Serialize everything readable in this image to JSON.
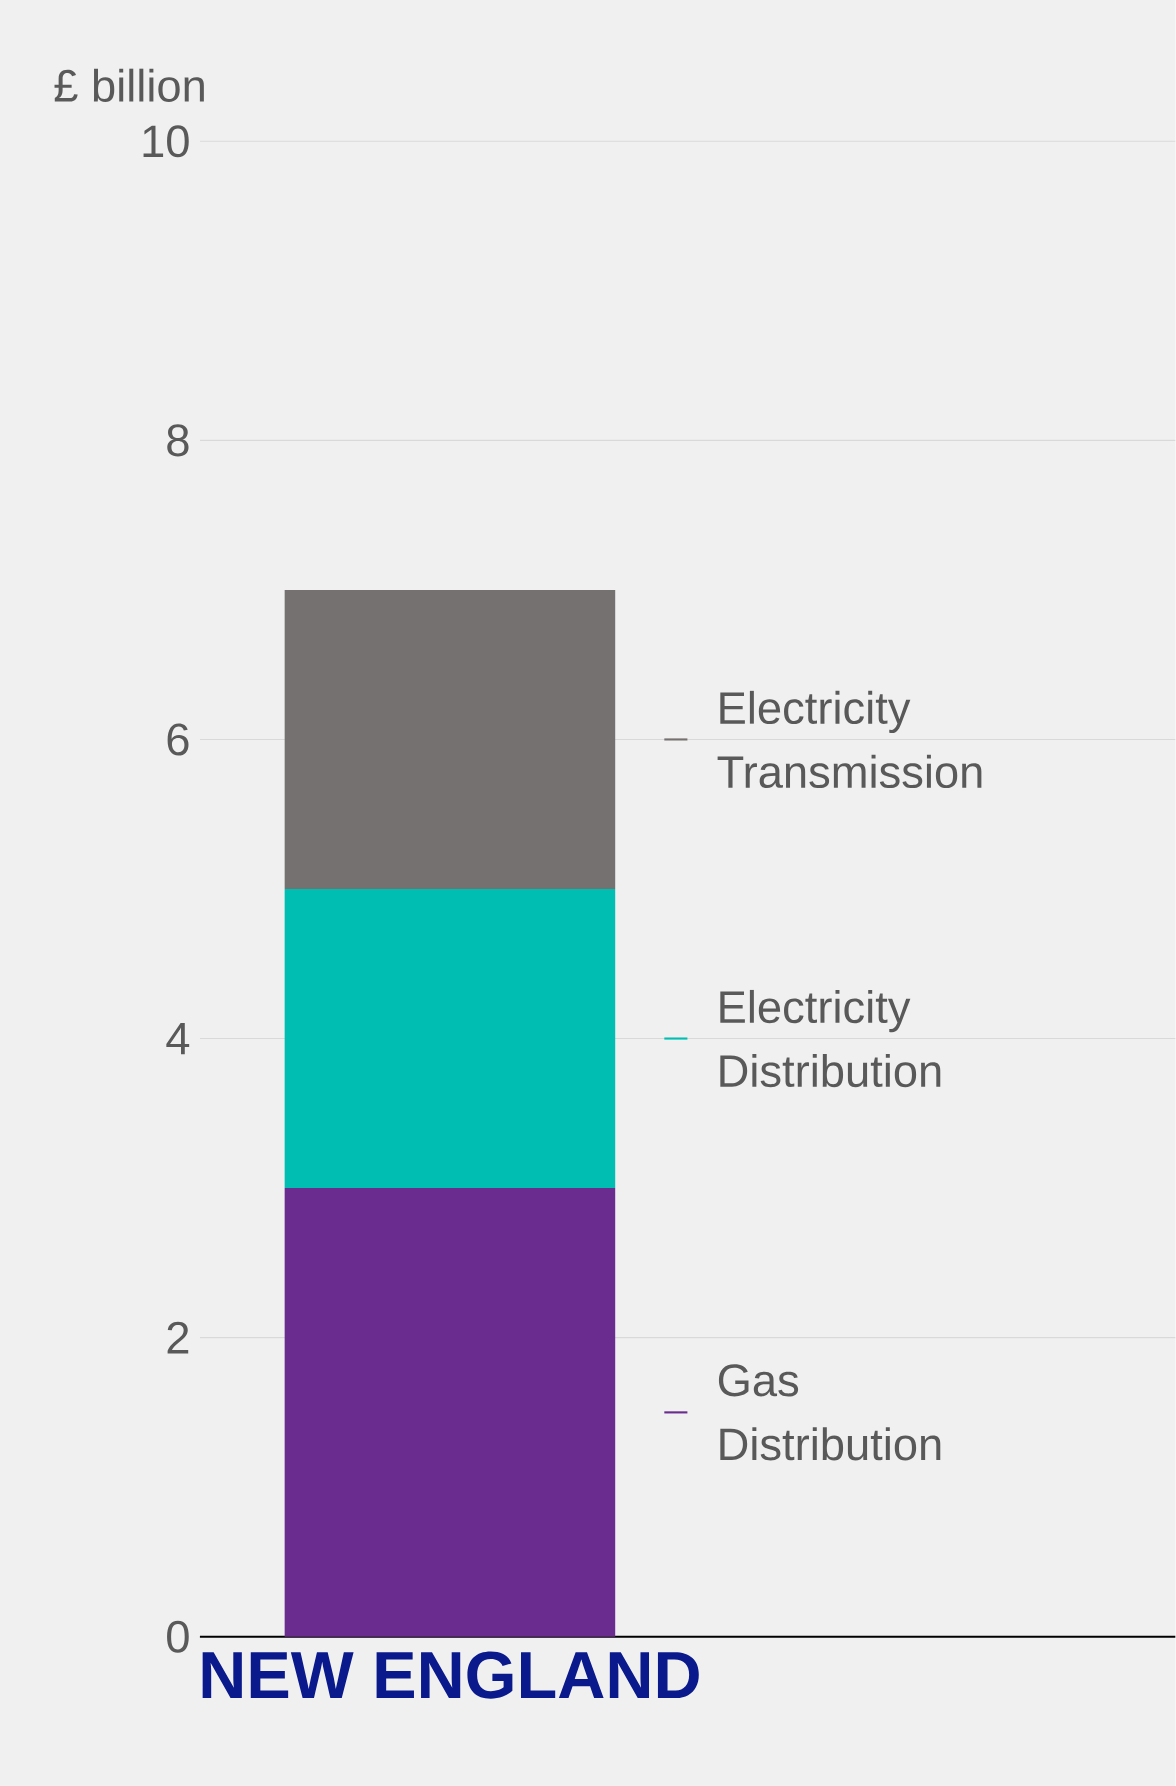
{
  "chart_data": {
    "type": "bar",
    "stacked": true,
    "ylabel": "£ billion",
    "categories": [
      "NEW ENGLAND"
    ],
    "series": [
      {
        "name": "Gas Distribution",
        "color": "#6a2c8e",
        "values": [
          3
        ]
      },
      {
        "name": "Electricity Distribution",
        "color": "#00bfb2",
        "values": [
          2
        ]
      },
      {
        "name": "Electricity Transmission",
        "color": "#767171",
        "values": [
          2
        ]
      }
    ],
    "ylim": [
      0,
      10
    ],
    "yticks": [
      0,
      2,
      4,
      6,
      8,
      10
    ],
    "grid": "y",
    "legend": "right"
  }
}
